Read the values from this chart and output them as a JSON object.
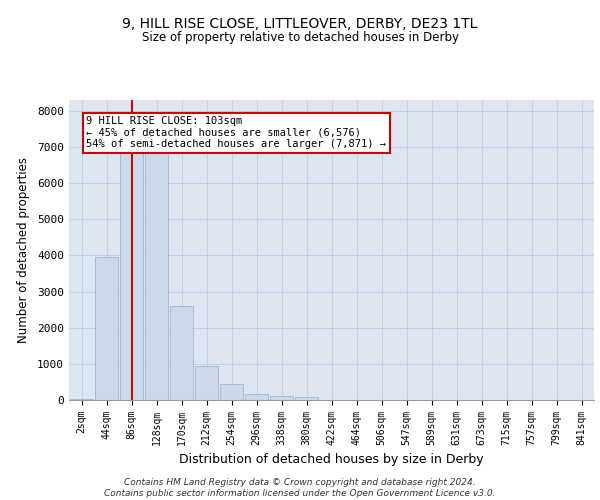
{
  "title1": "9, HILL RISE CLOSE, LITTLEOVER, DERBY, DE23 1TL",
  "title2": "Size of property relative to detached houses in Derby",
  "xlabel": "Distribution of detached houses by size in Derby",
  "ylabel": "Number of detached properties",
  "bar_color": "#ccd9e8",
  "bar_edgecolor": "#9fb8d0",
  "grid_color": "#c5cfe0",
  "bg_color": "#dde6f0",
  "vline_color": "#cc0000",
  "vline_x_index": 2,
  "annotation_text": "9 HILL RISE CLOSE: 103sqm\n← 45% of detached houses are smaller (6,576)\n54% of semi-detached houses are larger (7,871) →",
  "annotation_box_color": "white",
  "annotation_box_edgecolor": "#cc0000",
  "footnote": "Contains HM Land Registry data © Crown copyright and database right 2024.\nContains public sector information licensed under the Open Government Licence v3.0.",
  "categories": [
    "2sqm",
    "44sqm",
    "86sqm",
    "128sqm",
    "170sqm",
    "212sqm",
    "254sqm",
    "296sqm",
    "338sqm",
    "380sqm",
    "422sqm",
    "464sqm",
    "506sqm",
    "547sqm",
    "589sqm",
    "631sqm",
    "673sqm",
    "715sqm",
    "757sqm",
    "799sqm",
    "841sqm"
  ],
  "bar_heights": [
    40,
    3950,
    7500,
    7500,
    2600,
    950,
    430,
    175,
    120,
    70,
    0,
    0,
    0,
    0,
    0,
    0,
    0,
    0,
    0,
    0,
    0
  ],
  "ylim": [
    0,
    8300
  ],
  "yticks": [
    0,
    1000,
    2000,
    3000,
    4000,
    5000,
    6000,
    7000,
    8000
  ]
}
